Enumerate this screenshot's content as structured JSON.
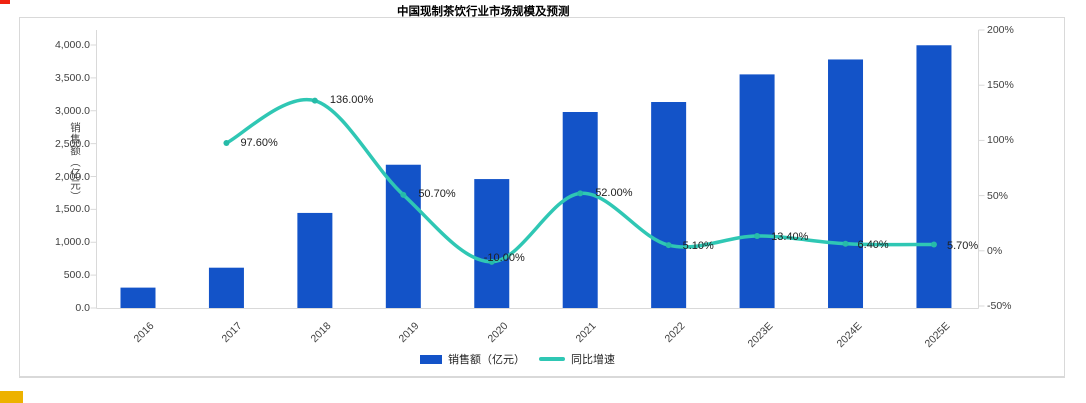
{
  "page": {
    "top_left_marker_color": "#f02311",
    "bottom_left_marker_color": "#edb200",
    "panel_border_color": "#d9d9d9"
  },
  "colors": {
    "bar": "#1353c8",
    "line": "#2fc7b4",
    "line_marker": "#26bba8",
    "axis": "#d9d9d9",
    "tick_text": "#404040",
    "data_label_text": "#212121"
  },
  "chart_data": {
    "type": "bar+line combo",
    "title": "中国现制茶饮行业市场规模及预测",
    "grid": false,
    "legend_position": "bottom-center",
    "categories": [
      "2016",
      "2017",
      "2018",
      "2019",
      "2020",
      "2021",
      "2022",
      "2023E",
      "2024E",
      "2025E"
    ],
    "series": [
      {
        "name": "销售额（亿元）",
        "type": "bar",
        "axis": "left",
        "values": [
          310,
          613,
          1446,
          2179,
          1961,
          2981,
          3133,
          3553,
          3780,
          3996
        ]
      },
      {
        "name": "同比增速",
        "type": "line",
        "axis": "right",
        "values": [
          null,
          97.6,
          136.0,
          50.7,
          -10.0,
          52.0,
          5.1,
          13.4,
          6.4,
          5.7
        ],
        "point_labels": [
          null,
          "97.60%",
          "136.00%",
          "50.70%",
          "-10.00%",
          "52.00%",
          "5.10%",
          "13.40%",
          "6.40%",
          "5.70%"
        ]
      }
    ],
    "left_axis": {
      "label": "销售额（亿元）",
      "min": 0,
      "max": 4000,
      "ticks": [
        "0.0",
        "500.0",
        "1,000.0",
        "1,500.0",
        "2,000.0",
        "2,500.0",
        "3,000.0",
        "3,500.0",
        "4,000.0"
      ]
    },
    "right_axis": {
      "label": "",
      "min": -50,
      "max": 200,
      "ticks": [
        "-50%",
        "0%",
        "50%",
        "100%",
        "150%",
        "200%"
      ]
    }
  }
}
